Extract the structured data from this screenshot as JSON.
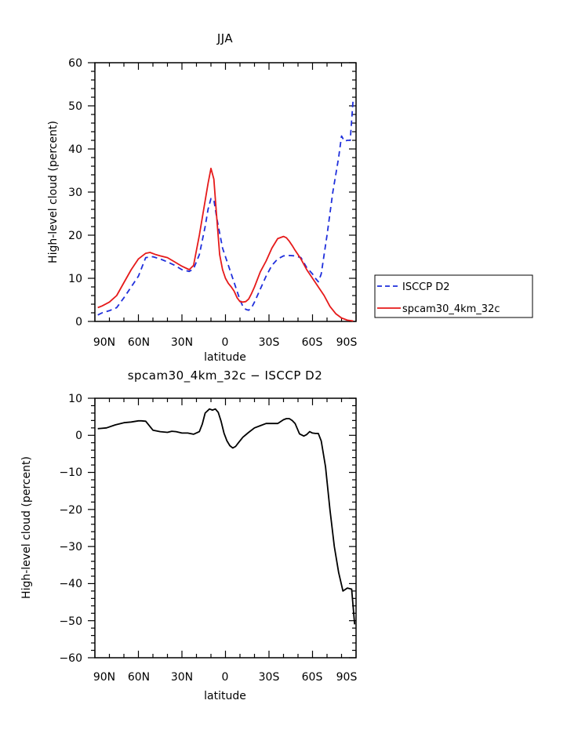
{
  "chart_data": [
    {
      "type": "line",
      "title": "JJA",
      "xlabel": "latitude",
      "ylabel": "High-level cloud (percent)",
      "xlim": [
        -90,
        90
      ],
      "ylim": [
        0,
        60
      ],
      "x_tick_labels": [
        "90N",
        "60N",
        "30N",
        "0",
        "30S",
        "60S",
        "90S"
      ],
      "y_tick_labels": [
        "0",
        "10",
        "20",
        "30",
        "40",
        "50",
        "60"
      ],
      "legend": {
        "placement": "right",
        "entries": [
          "ISCCP D2",
          "spcam30_4km_32c"
        ]
      },
      "series": [
        {
          "name": "ISCCP D2",
          "color": "#1f2fdc",
          "dash": "dashed",
          "x": [
            -88,
            -85,
            -80,
            -75,
            -70,
            -65,
            -60,
            -55,
            -50,
            -45,
            -40,
            -35,
            -30,
            -25,
            -22,
            -18,
            -14,
            -12,
            -10,
            -8,
            -6,
            -4,
            -2,
            0,
            2,
            4,
            6,
            8,
            10,
            12,
            14,
            16,
            18,
            20,
            24,
            28,
            32,
            36,
            40,
            44,
            48,
            52,
            56,
            60,
            62,
            64,
            66,
            70,
            74,
            78,
            80,
            82,
            84,
            86,
            88
          ],
          "y": [
            1.5,
            2,
            2.5,
            3.2,
            5.5,
            8,
            10.5,
            14.8,
            15,
            14.5,
            13.8,
            13,
            12,
            11.6,
            12.2,
            15.5,
            22,
            26,
            28.5,
            28.2,
            24,
            20.5,
            17,
            15,
            13,
            11,
            9,
            7,
            5,
            3.5,
            2.8,
            2.6,
            3.2,
            4.5,
            7.5,
            10.5,
            13,
            14.5,
            15.2,
            15.3,
            15.2,
            14.8,
            12.5,
            11,
            10,
            9.2,
            11,
            20,
            30,
            38,
            43,
            41.8,
            42,
            42,
            51.5
          ]
        },
        {
          "name": "spcam30_4km_32c",
          "color": "#e61a1a",
          "dash": "solid",
          "x": [
            -88,
            -85,
            -80,
            -75,
            -70,
            -65,
            -60,
            -55,
            -52,
            -48,
            -45,
            -40,
            -35,
            -30,
            -25,
            -22,
            -18,
            -14,
            -12,
            -10,
            -8,
            -6,
            -4,
            -2,
            0,
            2,
            4,
            6,
            8,
            10,
            12,
            14,
            16,
            18,
            20,
            24,
            28,
            32,
            36,
            40,
            42,
            44,
            46,
            48,
            52,
            56,
            60,
            64,
            68,
            72,
            76,
            80,
            84,
            88
          ],
          "y": [
            3.2,
            3.6,
            4.5,
            6,
            9,
            12,
            14.5,
            15.8,
            16,
            15.5,
            15.2,
            14.8,
            13.8,
            12.8,
            12,
            13,
            20,
            28,
            32,
            35.5,
            33,
            24,
            15.5,
            12,
            10,
            8.8,
            8,
            7,
            5.5,
            4.6,
            4.5,
            4.6,
            5.2,
            6.5,
            8,
            11.5,
            14,
            17,
            19.2,
            19.7,
            19.4,
            18.6,
            17.6,
            16.5,
            14.5,
            12,
            10,
            8,
            6,
            3.5,
            1.8,
            0.8,
            0.3,
            0.1
          ]
        }
      ]
    },
    {
      "type": "line",
      "title": "spcam30_4km_32c − ISCCP D2",
      "xlabel": "latitude",
      "ylabel": "High-level cloud (percent)",
      "xlim": [
        -90,
        90
      ],
      "ylim": [
        -60,
        10
      ],
      "x_tick_labels": [
        "90N",
        "60N",
        "30N",
        "0",
        "30S",
        "60S",
        "90S"
      ],
      "y_tick_labels": [
        "−60",
        "−50",
        "−40",
        "−30",
        "−20",
        "−10",
        "0",
        "10"
      ],
      "series": [
        {
          "color": "#000000",
          "dash": "solid",
          "x": [
            -88,
            -82,
            -76,
            -70,
            -65,
            -60,
            -58,
            -55,
            -50,
            -45,
            -40,
            -37,
            -34,
            -30,
            -26,
            -22,
            -18,
            -16,
            -14,
            -11,
            -9,
            -7,
            -5,
            -3,
            -1,
            1,
            3,
            5,
            7,
            9,
            12,
            16,
            20,
            24,
            28,
            32,
            36,
            40,
            42,
            44,
            46,
            48,
            51,
            54,
            56,
            58,
            60,
            62,
            64,
            66,
            69,
            72,
            75,
            78,
            81,
            84,
            87,
            89
          ],
          "y": [
            1.8,
            2,
            2.8,
            3.4,
            3.6,
            3.9,
            3.9,
            3.8,
            1.4,
            1,
            0.8,
            1.1,
            1,
            0.6,
            0.6,
            0.3,
            1,
            3,
            6,
            7.1,
            6.8,
            7.1,
            6.2,
            3.8,
            0.6,
            -1.5,
            -2.8,
            -3.4,
            -3,
            -2,
            -0.5,
            0.8,
            2,
            2.6,
            3.2,
            3.2,
            3.2,
            4.2,
            4.5,
            4.5,
            4,
            3.2,
            0.4,
            -0.2,
            0.2,
            1,
            0.6,
            0.5,
            0.5,
            -1.5,
            -8.5,
            -20,
            -30,
            -37,
            -42,
            -41.2,
            -41.5,
            -51
          ]
        }
      ]
    }
  ]
}
